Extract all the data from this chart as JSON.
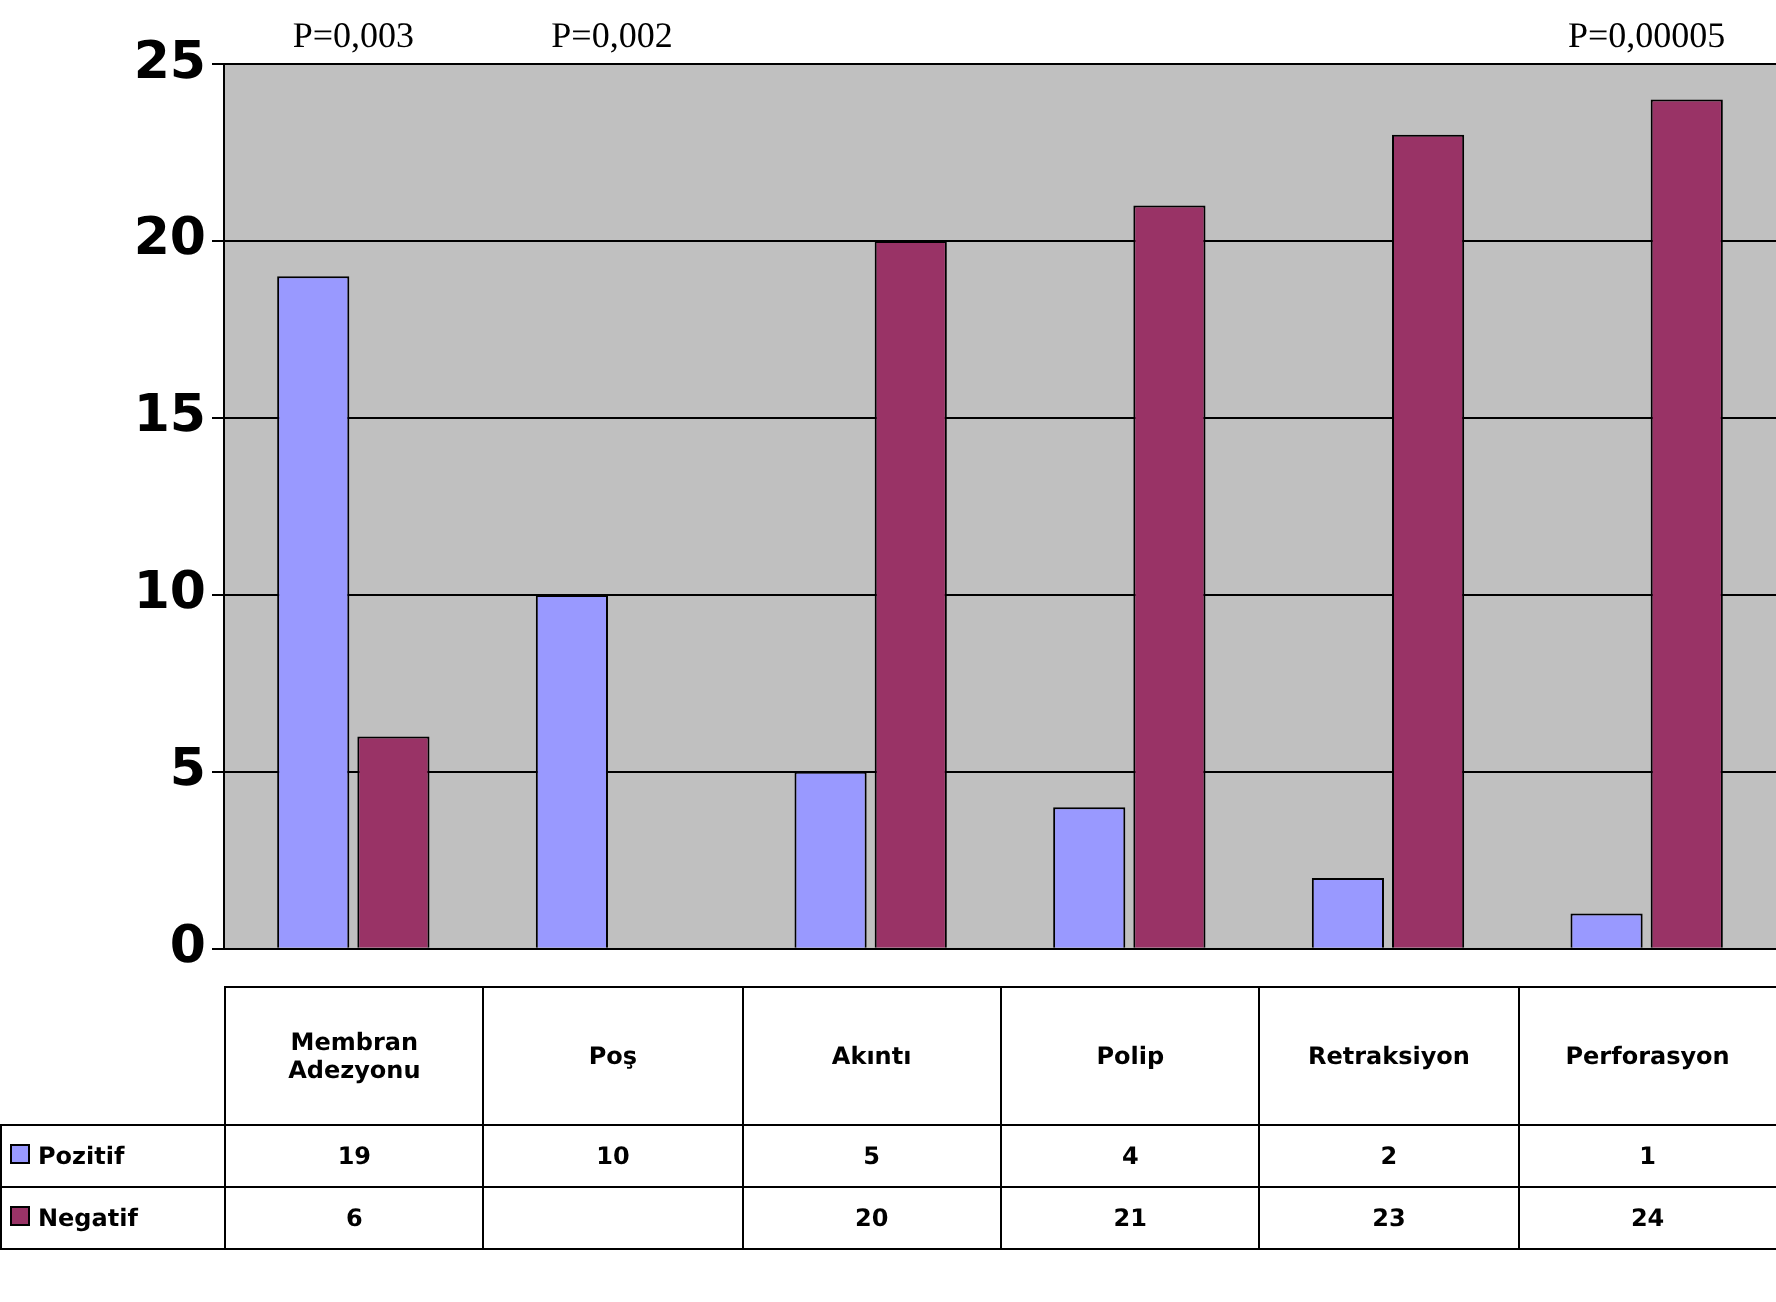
{
  "chart_data": {
    "type": "bar",
    "categories": [
      "Membran Adezyonu",
      "Poş",
      "Akıntı",
      "Polip",
      "Retraksiyon",
      "Perforasyon"
    ],
    "series": [
      {
        "name": "Pozitif",
        "color": "#9999ff",
        "values": [
          19,
          10,
          5,
          4,
          2,
          1
        ]
      },
      {
        "name": "Negatif",
        "color": "#993366",
        "values": [
          6,
          null,
          20,
          21,
          23,
          24
        ]
      }
    ],
    "ylim": [
      0,
      25
    ],
    "yticks": [
      0,
      5,
      10,
      15,
      20,
      25
    ],
    "grid": "y",
    "legend": "bottom",
    "data_labels": true,
    "annotations": [
      "P=0,003",
      "P=0,002",
      "P=0,00005"
    ]
  }
}
